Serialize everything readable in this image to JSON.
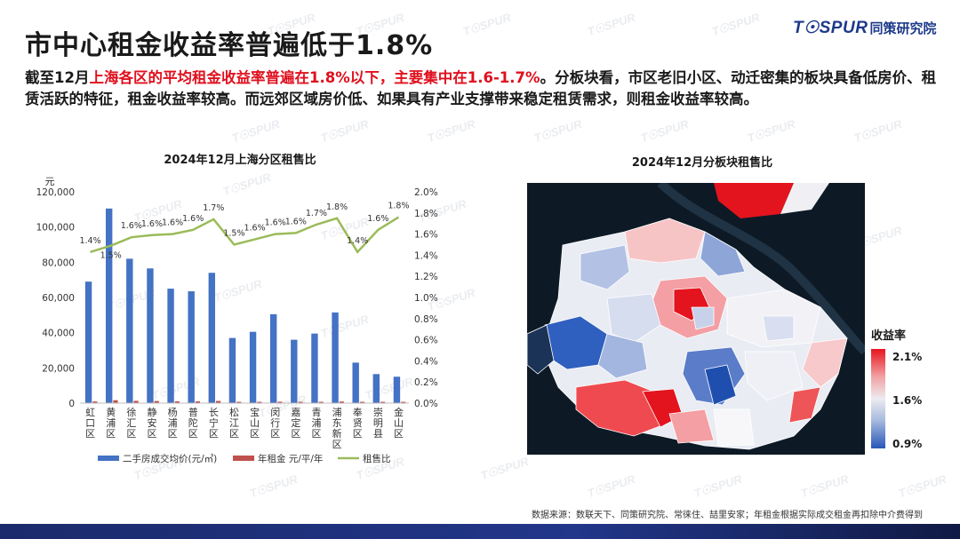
{
  "page": {
    "title": "市中心租金收益率普遍低于1.8%",
    "logo_brand": "T☉SPUR",
    "logo_cn": "同策研究院",
    "summary_p1": "截至12月",
    "summary_highlight": "上海各区的平均租金收益率普遍在1.8%以下，主要集中在1.6-1.7%",
    "summary_p2": "。分板块看，市区老旧小区、动迁密集的板块具备低房价、租赁活跃的特征，租金收益率较高。而远郊区域房价低、如果具有产业支撑带来稳定租赁需求，则租金收益率较高。",
    "source": "数据来源：数联天下、同策研究院、常徕住、喆里安家；年租金根据实际成交租金再扣除中介费得到",
    "watermark": "T☉SPUR"
  },
  "chart_data": [
    {
      "type": "bar",
      "title": "2024年12月上海分区租售比",
      "ylabel": "元",
      "ylim": [
        0,
        120000
      ],
      "y2lim": [
        0,
        0.02
      ],
      "categories": [
        "虹口区",
        "黄浦区",
        "徐汇区",
        "静安区",
        "杨浦区",
        "普陀区",
        "长宁区",
        "松江区",
        "宝山区",
        "闵行区",
        "嘉定区",
        "青浦区",
        "浦东新区",
        "奉贤区",
        "崇明县",
        "金山区"
      ],
      "series": [
        {
          "name": "二手房成交均价(元/㎡)",
          "axis": "left",
          "color": "#4472c4",
          "values": [
            69000,
            110500,
            82000,
            76500,
            65000,
            63500,
            74000,
            37000,
            40500,
            50500,
            36000,
            39500,
            51500,
            23000,
            16500,
            15000
          ]
        },
        {
          "name": "年租金 元/平/年",
          "axis": "left",
          "color": "#c0504d",
          "values": [
            966,
            1658,
            1312,
            1224,
            1040,
            1016,
            1258,
            555,
            648,
            808,
            576,
            672,
            927,
            322,
            264,
            270
          ]
        },
        {
          "name": "租售比",
          "axis": "right",
          "type": "line",
          "color": "#9bbb59",
          "values": [
            0.0143,
            0.0149,
            0.0157,
            0.0159,
            0.016,
            0.0164,
            0.0174,
            0.015,
            0.0155,
            0.016,
            0.0161,
            0.0169,
            0.0175,
            0.0143,
            0.0164,
            0.0176
          ],
          "labels": [
            "1.4%",
            "1.5%",
            "1.6%",
            "1.6%",
            "1.6%",
            "1.6%",
            "1.7%",
            "1.5%",
            "1.6%",
            "1.6%",
            "1.6%",
            "1.7%",
            "1.8%",
            "1.4%",
            "1.6%",
            "1.8%"
          ]
        }
      ],
      "y_ticks": [
        "0",
        "20,000",
        "40,000",
        "60,000",
        "80,000",
        "100,000",
        "120,000"
      ],
      "y2_ticks": [
        "0.0%",
        "0.2%",
        "0.4%",
        "0.6%",
        "0.8%",
        "1.0%",
        "1.2%",
        "1.4%",
        "1.6%",
        "1.8%",
        "2.0%"
      ],
      "legend": "bottom"
    },
    {
      "type": "heatmap",
      "title": "2024年12月分板块租售比",
      "colorbar_title": "收益率",
      "colorbar_ticks": [
        "2.1%",
        "1.6%",
        "0.9%"
      ],
      "colorbar_range": [
        0.009,
        0.021
      ]
    }
  ],
  "colors": {
    "bar_price": "#4472c4",
    "bar_rent": "#c0504d",
    "line_ratio": "#9bbb59",
    "highlight": "#e0101e",
    "brand": "#1d3a8a",
    "map_background": "#0d1a26"
  }
}
